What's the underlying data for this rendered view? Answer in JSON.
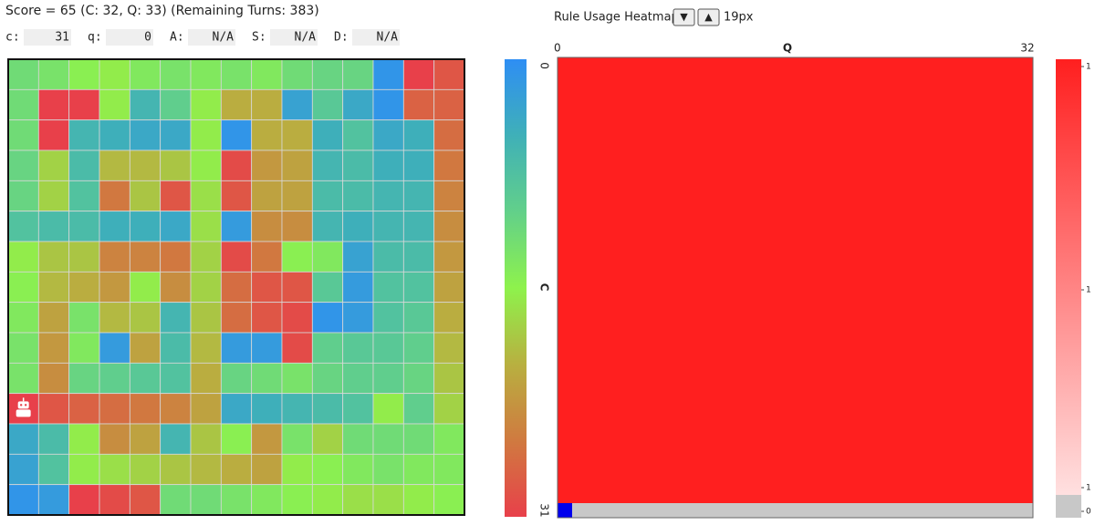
{
  "header": {
    "score_text": "Score = 65 (C: 32, Q: 33) (Remaining Turns: 383)"
  },
  "fields": [
    {
      "label": "c:",
      "value": 31
    },
    {
      "label": "q:",
      "value": 0
    },
    {
      "label": "A:",
      "value": "N/A"
    },
    {
      "label": "S:",
      "value": "N/A"
    },
    {
      "label": "D:",
      "value": "N/A"
    }
  ],
  "grid": {
    "cells": [
      [
        12,
        13,
        15,
        16,
        14,
        13,
        14,
        13,
        14,
        12,
        11,
        11,
        1,
        31,
        29
      ],
      [
        12,
        31,
        31,
        16,
        6,
        10,
        16,
        21,
        21,
        3,
        9,
        4,
        1,
        28,
        28
      ],
      [
        12,
        31,
        6,
        5,
        4,
        4,
        16,
        1,
        21,
        21,
        5,
        8,
        4,
        5,
        27
      ],
      [
        11,
        18,
        7,
        20,
        20,
        19,
        16,
        30,
        23,
        22,
        6,
        7,
        5,
        5,
        26
      ],
      [
        11,
        18,
        8,
        26,
        19,
        29,
        17,
        29,
        22,
        22,
        7,
        7,
        6,
        6,
        25
      ],
      [
        8,
        7,
        7,
        5,
        5,
        4,
        17,
        2,
        24,
        24,
        6,
        5,
        6,
        6,
        24
      ],
      [
        16,
        19,
        19,
        25,
        25,
        26,
        18,
        30,
        26,
        15,
        14,
        3,
        7,
        7,
        23
      ],
      [
        15,
        20,
        21,
        23,
        16,
        24,
        18,
        27,
        29,
        29,
        9,
        2,
        8,
        8,
        22
      ],
      [
        14,
        22,
        13,
        20,
        19,
        6,
        19,
        27,
        29,
        30,
        1,
        2,
        8,
        9,
        21
      ],
      [
        13,
        23,
        14,
        2,
        22,
        7,
        20,
        2,
        2,
        30,
        10,
        9,
        9,
        10,
        20
      ],
      [
        13,
        24,
        11,
        10,
        9,
        8,
        21,
        11,
        12,
        13,
        11,
        10,
        10,
        11,
        19
      ],
      [
        31,
        29,
        28,
        27,
        26,
        25,
        22,
        4,
        5,
        6,
        7,
        8,
        16,
        10,
        18
      ],
      [
        4,
        7,
        16,
        24,
        22,
        6,
        19,
        15,
        23,
        13,
        18,
        12,
        12,
        12,
        14
      ],
      [
        3,
        8,
        16,
        17,
        18,
        19,
        20,
        21,
        22,
        16,
        15,
        14,
        13,
        14,
        14
      ],
      [
        1,
        2,
        31,
        30,
        29,
        12,
        12,
        13,
        14,
        15,
        16,
        17,
        17,
        16,
        15
      ]
    ],
    "agent": {
      "row": 11,
      "col": 0
    }
  },
  "colorbar": {
    "label": "C",
    "range": [
      0,
      31
    ],
    "colors": [
      "#2e8ef4",
      "#3fb0b8",
      "#62d08a",
      "#8ef24c",
      "#b8b040",
      "#d07a40",
      "#e8404a"
    ]
  },
  "heatmap": {
    "title": "Rule Usage Heatmap",
    "down_button": "▼",
    "up_button": "▲",
    "size_label": "19px",
    "x_axis_label": "Q",
    "x_range": [
      0,
      32
    ],
    "legend_ticks": [
      1,
      1,
      1,
      0
    ]
  }
}
